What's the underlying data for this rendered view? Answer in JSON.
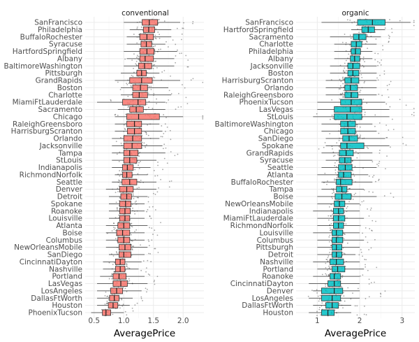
{
  "chart_data": {
    "type": "boxplot",
    "colors": {
      "conventional": "#F8766D",
      "organic": "#00BFC4"
    },
    "panels": [
      {
        "title": "conventional",
        "xlabel": "AveragePrice",
        "xlim": [
          0.35,
          2.35
        ],
        "xticks": [
          0.5,
          1.0,
          1.5,
          2.0
        ],
        "xtick_labels": [
          "0.5",
          "1.0",
          "1.5",
          "2.0"
        ],
        "categories": [
          "SanFrancisco",
          "Philadelphia",
          "BuffaloRochester",
          "Syracuse",
          "HartfordSpringfield",
          "Albany",
          "BaltimoreWashington",
          "Pittsburgh",
          "GrandRapids",
          "Boston",
          "Charlotte",
          "MiamiFtLauderdale",
          "Sacramento",
          "Chicago",
          "RaleighGreensboro",
          "HarrisburgScranton",
          "Orlando",
          "Jacksonville",
          "Tampa",
          "StLouis",
          "Indianapolis",
          "RichmondNorfolk",
          "Seattle",
          "Denver",
          "Detroit",
          "Spokane",
          "Roanoke",
          "Louisville",
          "Atlanta",
          "Boise",
          "Columbus",
          "NewOrleansMobile",
          "SanDiego",
          "CincinnatiDayton",
          "Nashville",
          "Portland",
          "LasVegas",
          "LosAngeles",
          "DallasFtWorth",
          "Houston",
          "PhoenixTucson"
        ],
        "boxes": [
          [
            1.0,
            1.31,
            1.43,
            1.57,
            1.95
          ],
          [
            1.1,
            1.33,
            1.42,
            1.52,
            1.8
          ],
          [
            1.05,
            1.27,
            1.39,
            1.5,
            1.8
          ],
          [
            1.05,
            1.29,
            1.38,
            1.47,
            1.7
          ],
          [
            1.0,
            1.27,
            1.39,
            1.51,
            1.9
          ],
          [
            1.05,
            1.27,
            1.36,
            1.5,
            1.85
          ],
          [
            1.0,
            1.25,
            1.35,
            1.47,
            1.85
          ],
          [
            0.95,
            1.22,
            1.3,
            1.38,
            1.6
          ],
          [
            0.85,
            1.1,
            1.3,
            1.48,
            1.95
          ],
          [
            0.95,
            1.15,
            1.28,
            1.4,
            1.75
          ],
          [
            0.95,
            1.15,
            1.26,
            1.4,
            1.8
          ],
          [
            0.55,
            0.98,
            1.24,
            1.37,
            1.7
          ],
          [
            0.9,
            1.1,
            1.21,
            1.33,
            1.7
          ],
          [
            0.85,
            1.05,
            1.25,
            1.6,
            2.0
          ],
          [
            0.85,
            1.05,
            1.18,
            1.3,
            1.6
          ],
          [
            0.85,
            1.06,
            1.18,
            1.3,
            1.65
          ],
          [
            0.8,
            1.0,
            1.15,
            1.3,
            1.6
          ],
          [
            0.8,
            1.0,
            1.14,
            1.3,
            1.65
          ],
          [
            0.8,
            1.0,
            1.1,
            1.24,
            1.7
          ],
          [
            0.8,
            1.0,
            1.1,
            1.22,
            1.55
          ],
          [
            0.8,
            0.98,
            1.06,
            1.16,
            1.45
          ],
          [
            0.85,
            0.98,
            1.05,
            1.14,
            1.4
          ],
          [
            0.8,
            0.97,
            1.1,
            1.22,
            1.55
          ],
          [
            0.7,
            0.93,
            1.05,
            1.16,
            1.55
          ],
          [
            0.75,
            0.95,
            1.05,
            1.13,
            1.4
          ],
          [
            0.75,
            0.93,
            1.03,
            1.12,
            1.35
          ],
          [
            0.75,
            0.93,
            1.02,
            1.11,
            1.35
          ],
          [
            0.75,
            0.93,
            1.02,
            1.1,
            1.35
          ],
          [
            0.7,
            0.9,
            1.0,
            1.1,
            1.4
          ],
          [
            0.7,
            0.88,
            0.98,
            1.1,
            1.35
          ],
          [
            0.7,
            0.9,
            1.0,
            1.1,
            1.35
          ],
          [
            0.7,
            0.92,
            1.02,
            1.12,
            1.4
          ],
          [
            0.75,
            0.92,
            1.0,
            1.12,
            1.35
          ],
          [
            0.65,
            0.86,
            0.94,
            1.02,
            1.3
          ],
          [
            0.65,
            0.86,
            0.94,
            1.02,
            1.25
          ],
          [
            0.6,
            0.82,
            0.92,
            1.04,
            1.35
          ],
          [
            0.55,
            0.82,
            0.95,
            1.06,
            1.4
          ],
          [
            0.55,
            0.78,
            0.88,
            0.98,
            1.3
          ],
          [
            0.55,
            0.76,
            0.84,
            0.92,
            1.15
          ],
          [
            0.55,
            0.74,
            0.82,
            0.9,
            1.1
          ],
          [
            0.45,
            0.64,
            0.7,
            0.78,
            1.0
          ]
        ]
      },
      {
        "title": "organic",
        "xlabel": "AveragePrice",
        "xlim": [
          0.5,
          3.3
        ],
        "xticks": [
          1,
          2,
          3
        ],
        "xtick_labels": [
          "1",
          "2",
          "3"
        ],
        "categories": [
          "SanFrancisco",
          "HartfordSpringfield",
          "Sacramento",
          "Charlotte",
          "Philadelphia",
          "Albany",
          "Jacksonville",
          "Boston",
          "HarrisburgScranton",
          "Orlando",
          "RaleighGreensboro",
          "PhoenixTucson",
          "LasVegas",
          "StLouis",
          "BaltimoreWashington",
          "Chicago",
          "SanDiego",
          "Spokane",
          "GrandRapids",
          "Syracuse",
          "Seattle",
          "Atlanta",
          "BuffaloRochester",
          "Tampa",
          "Boise",
          "NewOrleansMobile",
          "Indianapolis",
          "MiamiFtLauderdale",
          "RichmondNorfolk",
          "Louisville",
          "Columbus",
          "Pittsburgh",
          "Detroit",
          "Nashville",
          "Portland",
          "Roanoke",
          "CincinnatiDayton",
          "Denver",
          "LosAngeles",
          "DallasFtWorth",
          "Houston"
        ],
        "boxes": [
          [
            1.1,
            1.95,
            2.3,
            2.6,
            3.2
          ],
          [
            1.8,
            2.05,
            2.2,
            2.35,
            2.6
          ],
          [
            1.3,
            1.85,
            1.98,
            2.15,
            2.5
          ],
          [
            1.4,
            1.8,
            1.92,
            2.05,
            2.4
          ],
          [
            1.4,
            1.8,
            1.9,
            2.02,
            2.3
          ],
          [
            1.4,
            1.78,
            1.88,
            2.0,
            2.3
          ],
          [
            1.3,
            1.72,
            1.84,
            2.0,
            2.4
          ],
          [
            1.3,
            1.72,
            1.84,
            1.98,
            2.4
          ],
          [
            1.2,
            1.65,
            1.8,
            1.98,
            2.4
          ],
          [
            1.2,
            1.65,
            1.78,
            1.95,
            2.4
          ],
          [
            1.2,
            1.65,
            1.8,
            1.96,
            2.4
          ],
          [
            1.0,
            1.55,
            1.8,
            2.05,
            2.6
          ],
          [
            1.0,
            1.4,
            1.78,
            2.05,
            2.7
          ],
          [
            0.9,
            1.4,
            1.7,
            2.05,
            2.7
          ],
          [
            1.1,
            1.55,
            1.72,
            1.9,
            2.3
          ],
          [
            1.1,
            1.55,
            1.72,
            1.9,
            2.4
          ],
          [
            1.2,
            1.6,
            1.75,
            1.95,
            2.6
          ],
          [
            1.2,
            1.55,
            1.7,
            2.1,
            2.7
          ],
          [
            1.1,
            1.52,
            1.68,
            1.85,
            2.3
          ],
          [
            1.2,
            1.52,
            1.65,
            1.8,
            2.3
          ],
          [
            1.1,
            1.5,
            1.66,
            1.82,
            2.4
          ],
          [
            1.0,
            1.5,
            1.62,
            1.8,
            2.2
          ],
          [
            1.1,
            1.45,
            1.55,
            1.82,
            2.3
          ],
          [
            1.1,
            1.45,
            1.58,
            1.7,
            2.1
          ],
          [
            1.0,
            1.42,
            1.58,
            1.8,
            2.4
          ],
          [
            1.0,
            1.4,
            1.52,
            1.65,
            2.0
          ],
          [
            0.9,
            1.38,
            1.5,
            1.62,
            2.0
          ],
          [
            1.0,
            1.38,
            1.5,
            1.65,
            2.1
          ],
          [
            1.0,
            1.38,
            1.5,
            1.62,
            2.0
          ],
          [
            0.9,
            1.35,
            1.45,
            1.6,
            2.0
          ],
          [
            1.0,
            1.35,
            1.45,
            1.6,
            2.1
          ],
          [
            1.0,
            1.35,
            1.45,
            1.58,
            2.0
          ],
          [
            1.0,
            1.35,
            1.45,
            1.58,
            1.9
          ],
          [
            0.9,
            1.3,
            1.45,
            1.62,
            2.0
          ],
          [
            1.0,
            1.35,
            1.48,
            1.65,
            2.1
          ],
          [
            0.9,
            1.3,
            1.4,
            1.55,
            2.0
          ],
          [
            0.8,
            1.25,
            1.4,
            1.55,
            2.0
          ],
          [
            0.9,
            1.1,
            1.4,
            1.6,
            2.0
          ],
          [
            0.8,
            1.1,
            1.35,
            1.55,
            2.0
          ],
          [
            0.9,
            1.2,
            1.35,
            1.5,
            1.8
          ],
          [
            0.8,
            1.1,
            1.25,
            1.4,
            1.8
          ]
        ]
      }
    ]
  }
}
